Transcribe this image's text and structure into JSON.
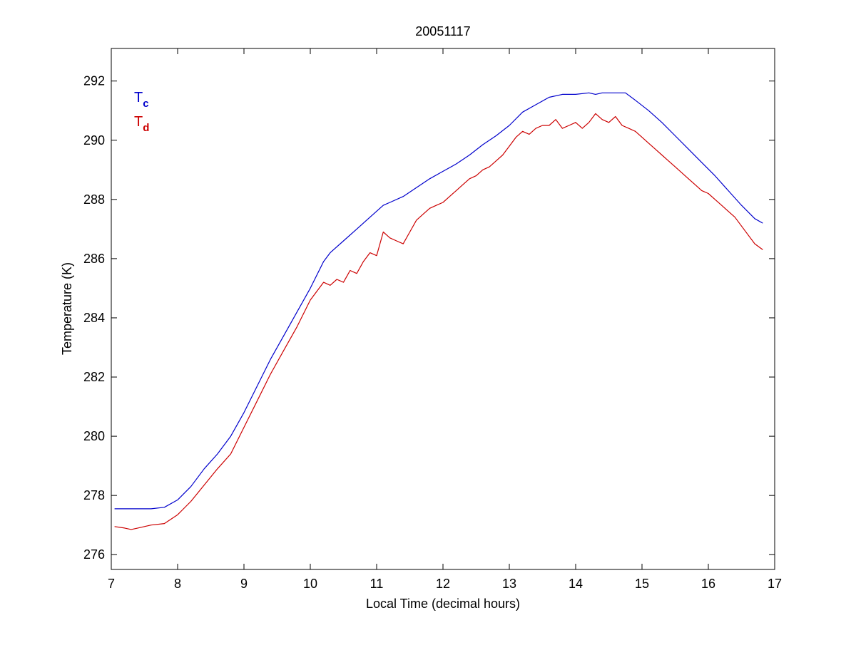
{
  "chart_data": {
    "type": "line",
    "title": "20051117",
    "xlabel": "Local Time (decimal hours)",
    "ylabel": "Temperature (K)",
    "xlim": [
      7,
      17
    ],
    "ylim": [
      275.5,
      293.1
    ],
    "xticks": [
      7,
      8,
      9,
      10,
      11,
      12,
      13,
      14,
      15,
      16,
      17
    ],
    "yticks": [
      276,
      278,
      280,
      282,
      284,
      286,
      288,
      290,
      292
    ],
    "grid": false,
    "legend_position": "top-left",
    "series": [
      {
        "name": "T",
        "subscript": "c",
        "color": "#0000cc",
        "x": [
          7.05,
          7.3,
          7.6,
          7.8,
          8.0,
          8.2,
          8.4,
          8.6,
          8.8,
          9.0,
          9.2,
          9.4,
          9.6,
          9.8,
          10.0,
          10.2,
          10.3,
          10.5,
          10.7,
          10.9,
          11.1,
          11.2,
          11.4,
          11.6,
          11.8,
          12.0,
          12.2,
          12.4,
          12.6,
          12.8,
          13.0,
          13.2,
          13.4,
          13.6,
          13.8,
          14.0,
          14.2,
          14.3,
          14.4,
          14.6,
          14.75,
          14.9,
          15.1,
          15.3,
          15.5,
          15.7,
          15.9,
          16.1,
          16.3,
          16.5,
          16.7,
          16.82
        ],
        "y": [
          277.55,
          277.55,
          277.55,
          277.6,
          277.85,
          278.3,
          278.9,
          279.4,
          280.0,
          280.8,
          281.7,
          282.6,
          283.4,
          284.2,
          285.0,
          285.9,
          286.2,
          286.6,
          287.0,
          287.4,
          287.8,
          287.9,
          288.1,
          288.4,
          288.7,
          288.95,
          289.2,
          289.5,
          289.85,
          290.15,
          290.5,
          290.95,
          291.2,
          291.45,
          291.55,
          291.55,
          291.6,
          291.55,
          291.6,
          291.6,
          291.6,
          291.35,
          291.0,
          290.6,
          290.15,
          289.7,
          289.25,
          288.8,
          288.3,
          287.8,
          287.35,
          287.2
        ]
      },
      {
        "name": "T",
        "subscript": "d",
        "color": "#cc0000",
        "x": [
          7.05,
          7.2,
          7.3,
          7.4,
          7.6,
          7.8,
          8.0,
          8.2,
          8.4,
          8.6,
          8.8,
          9.0,
          9.2,
          9.4,
          9.6,
          9.8,
          10.0,
          10.2,
          10.3,
          10.4,
          10.5,
          10.6,
          10.7,
          10.8,
          10.9,
          11.0,
          11.1,
          11.2,
          11.3,
          11.4,
          11.5,
          11.6,
          11.7,
          11.8,
          11.9,
          12.0,
          12.1,
          12.2,
          12.3,
          12.4,
          12.5,
          12.6,
          12.7,
          12.8,
          12.9,
          13.0,
          13.1,
          13.2,
          13.3,
          13.4,
          13.5,
          13.6,
          13.7,
          13.8,
          13.9,
          14.0,
          14.1,
          14.2,
          14.3,
          14.4,
          14.5,
          14.6,
          14.7,
          14.8,
          14.9,
          15.0,
          15.1,
          15.2,
          15.3,
          15.4,
          15.5,
          15.6,
          15.7,
          15.8,
          15.9,
          16.0,
          16.1,
          16.2,
          16.3,
          16.4,
          16.5,
          16.6,
          16.7,
          16.82
        ],
        "y": [
          276.95,
          276.9,
          276.85,
          276.9,
          277.0,
          277.05,
          277.35,
          277.8,
          278.35,
          278.9,
          279.4,
          280.3,
          281.2,
          282.1,
          282.9,
          283.7,
          284.6,
          285.2,
          285.1,
          285.3,
          285.2,
          285.6,
          285.5,
          285.9,
          286.2,
          286.1,
          286.9,
          286.7,
          286.6,
          286.5,
          286.9,
          287.3,
          287.5,
          287.7,
          287.8,
          287.9,
          288.1,
          288.3,
          288.5,
          288.7,
          288.8,
          289.0,
          289.1,
          289.3,
          289.5,
          289.8,
          290.1,
          290.3,
          290.2,
          290.4,
          290.5,
          290.5,
          290.7,
          290.4,
          290.5,
          290.6,
          290.4,
          290.6,
          290.9,
          290.7,
          290.6,
          290.8,
          290.5,
          290.4,
          290.3,
          290.1,
          289.9,
          289.7,
          289.5,
          289.3,
          289.1,
          288.9,
          288.7,
          288.5,
          288.3,
          288.2,
          288.0,
          287.8,
          287.6,
          287.4,
          287.1,
          286.8,
          286.5,
          286.3
        ]
      }
    ]
  }
}
